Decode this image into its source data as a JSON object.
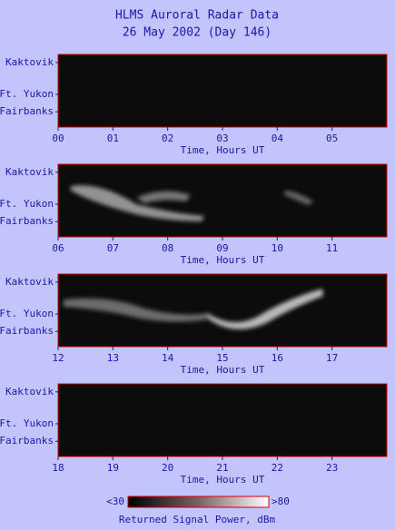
{
  "title": "HLMS Auroral Radar Data",
  "subtitle": "26 May 2002 (Day 146)",
  "chart_data": [
    {
      "type": "heatmap",
      "categories": [
        "Kaktovik",
        "Ft. Yukon",
        "Fairbanks"
      ],
      "xlabel": "Time, Hours UT",
      "xlim": [
        0,
        6
      ],
      "xticks": [
        {
          "value": 0,
          "label": "00"
        },
        {
          "value": 1,
          "label": "01"
        },
        {
          "value": 2,
          "label": "02"
        },
        {
          "value": 3,
          "label": "03"
        },
        {
          "value": 4,
          "label": "04"
        },
        {
          "value": 5,
          "label": "05"
        }
      ]
    },
    {
      "type": "heatmap",
      "categories": [
        "Kaktovik",
        "Ft. Yukon",
        "Fairbanks"
      ],
      "xlabel": "Time, Hours UT",
      "xlim": [
        6,
        12
      ],
      "xticks": [
        {
          "value": 6,
          "label": "06"
        },
        {
          "value": 7,
          "label": "07"
        },
        {
          "value": 8,
          "label": "08"
        },
        {
          "value": 9,
          "label": "09"
        },
        10,
        11
      ]
    },
    {
      "type": "heatmap",
      "categories": [
        "Kaktovik",
        "Ft. Yukon",
        "Fairbanks"
      ],
      "xlabel": "Time, Hours UT",
      "xlim": [
        12,
        18
      ],
      "xticks": [
        12,
        13,
        14,
        15,
        16,
        17
      ]
    },
    {
      "type": "heatmap",
      "categories": [
        "Kaktovik",
        "Ft. Yukon",
        "Fairbanks"
      ],
      "xlabel": "Time, Hours UT",
      "xlim": [
        18,
        24
      ],
      "xticks": [
        18,
        19,
        20,
        21,
        22,
        23
      ]
    }
  ],
  "colorbar": {
    "min": {
      "value": 30,
      "label": "<30"
    },
    "max": {
      "value": 80,
      "label": ">80"
    },
    "label": "Returned Signal Power, dBm"
  }
}
